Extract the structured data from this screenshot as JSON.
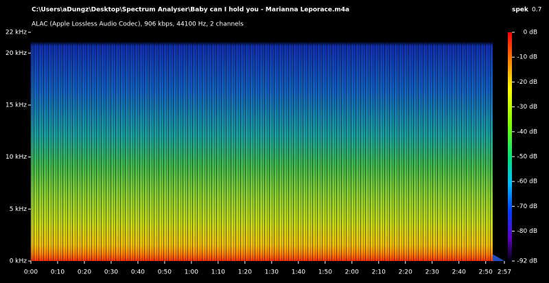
{
  "header": {
    "file": "C:\\Users\\aDungz\\Desktop\\Spectrum Analyser\\Baby can I hold you - Marianna Leporace.m4a",
    "info": "ALAC (Apple Lossless Audio Codec), 906 kbps, 44100 Hz, 2 channels",
    "app": "spek",
    "version": "0.7"
  },
  "chart_data": {
    "type": "spectrogram",
    "xlim": [
      0,
      177
    ],
    "xticks": [
      {
        "value": 0,
        "label": "0:00"
      },
      {
        "value": 10,
        "label": "0:10"
      },
      {
        "value": 20,
        "label": "0:20"
      },
      {
        "value": 30,
        "label": "0:30"
      },
      {
        "value": 40,
        "label": "0:40"
      },
      {
        "value": 50,
        "label": "0:50"
      },
      {
        "value": 60,
        "label": "1:00"
      },
      {
        "value": 70,
        "label": "1:10"
      },
      {
        "value": 80,
        "label": "1:20"
      },
      {
        "value": 90,
        "label": "1:30"
      },
      {
        "value": 100,
        "label": "1:40"
      },
      {
        "value": 110,
        "label": "1:50"
      },
      {
        "value": 120,
        "label": "2:00"
      },
      {
        "value": 130,
        "label": "2:10"
      },
      {
        "value": 140,
        "label": "2:20"
      },
      {
        "value": 150,
        "label": "2:30"
      },
      {
        "value": 160,
        "label": "2:40"
      },
      {
        "value": 170,
        "label": "2:50"
      },
      {
        "value": 177,
        "label": "2:57"
      }
    ],
    "ylim": [
      0,
      22
    ],
    "yticks": [
      {
        "value": 0,
        "label": "0 kHz"
      },
      {
        "value": 5,
        "label": "5 kHz"
      },
      {
        "value": 10,
        "label": "10 kHz"
      },
      {
        "value": 15,
        "label": "15 kHz"
      },
      {
        "value": 20,
        "label": "20 kHz"
      },
      {
        "value": 22,
        "label": "22 kHz"
      }
    ],
    "colorbar": {
      "lim": [
        -92,
        0
      ],
      "ticks": [
        {
          "value": 0,
          "label": "0 dB"
        },
        {
          "value": -10,
          "label": "-10 dB"
        },
        {
          "value": -20,
          "label": "-20 dB"
        },
        {
          "value": -30,
          "label": "-30 dB"
        },
        {
          "value": -40,
          "label": "-40 dB"
        },
        {
          "value": -50,
          "label": "-50 dB"
        },
        {
          "value": -60,
          "label": "-60 dB"
        },
        {
          "value": -70,
          "label": "-70 dB"
        },
        {
          "value": -80,
          "label": "-80 dB"
        },
        {
          "value": -92,
          "label": "-92 dB"
        }
      ]
    }
  }
}
